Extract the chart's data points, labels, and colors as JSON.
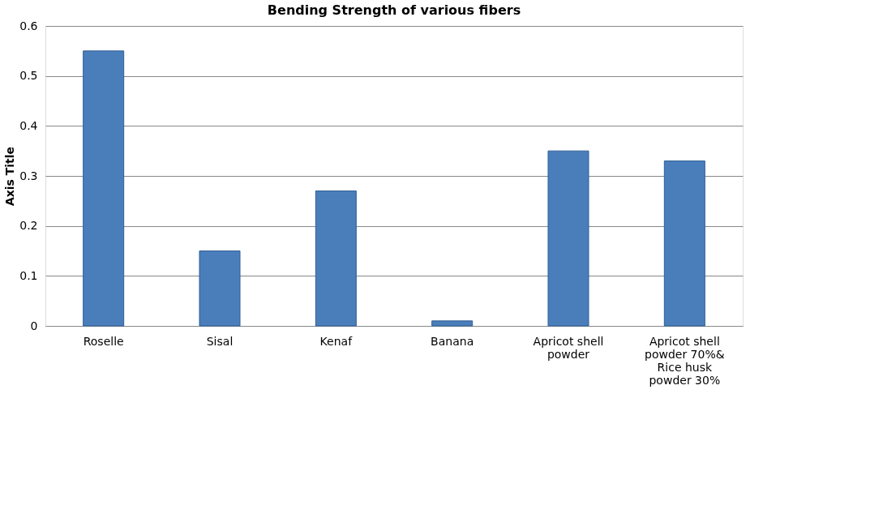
{
  "chart_data": {
    "type": "bar",
    "title": "Bending Strength of various fibers",
    "ylabel": "Axis Title",
    "categories": [
      "Roselle",
      "Sisal",
      "Kenaf",
      "Banana",
      "Apricot shell powder",
      "Apricot shell powder 70%& Rice husk powder 30%"
    ],
    "values": [
      0.55,
      0.15,
      0.27,
      0.01,
      0.35,
      0.33
    ],
    "color": "#4a7ebb",
    "ylim": [
      0,
      0.6
    ],
    "yticks": [
      0,
      0.1,
      0.2,
      0.3,
      0.4,
      0.5,
      0.6
    ],
    "grid": "y"
  }
}
